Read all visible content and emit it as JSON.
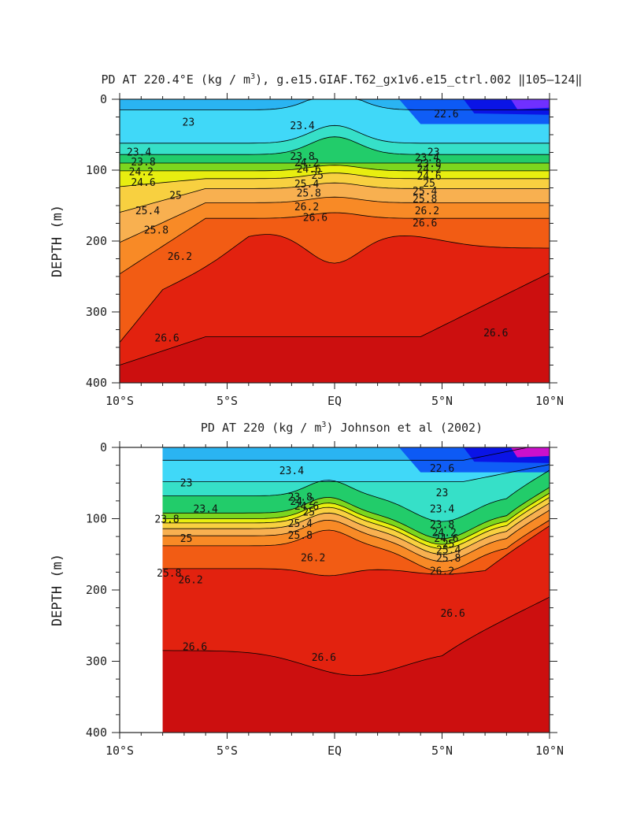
{
  "chart_data": [
    {
      "type": "contour",
      "title_prefix": "PD AT 220.4°E (kg / m",
      "title_sup": "3",
      "title_suffix": "), g.e15.GIAF.T62_gx1v6.e15_ctrl.002 ‖105–124‖",
      "ylabel": "DEPTH (m)",
      "xlabel": "",
      "xlim": [
        -10,
        10
      ],
      "ylim": [
        400,
        0
      ],
      "x_ticks": [
        -10,
        -5,
        0,
        5,
        10
      ],
      "x_tick_labels": [
        "10°S",
        "5°S",
        "EQ",
        "5°N",
        "10°N"
      ],
      "y_ticks": [
        0,
        100,
        200,
        300,
        400
      ],
      "y_tick_labels": [
        "0",
        "100",
        "200",
        "300",
        "400"
      ],
      "data_x_start": -10,
      "levels": [
        22.6,
        23.0,
        23.4,
        23.8,
        24.2,
        24.6,
        25.0,
        25.4,
        25.8,
        26.2,
        26.6
      ],
      "contour_labels": [
        {
          "text": "23",
          "x": -6.8,
          "y": 33
        },
        {
          "text": "23.4",
          "x": -9.1,
          "y": 75
        },
        {
          "text": "23.8",
          "x": -8.9,
          "y": 89
        },
        {
          "text": "24.2",
          "x": -9.0,
          "y": 103
        },
        {
          "text": "24.6",
          "x": -8.9,
          "y": 118
        },
        {
          "text": "25",
          "x": -7.4,
          "y": 136
        },
        {
          "text": "25.4",
          "x": -8.7,
          "y": 158
        },
        {
          "text": "25.8",
          "x": -8.3,
          "y": 185
        },
        {
          "text": "26.2",
          "x": -7.2,
          "y": 222
        },
        {
          "text": "26.6",
          "x": -7.8,
          "y": 337
        },
        {
          "text": "23.4",
          "x": -1.5,
          "y": 38
        },
        {
          "text": "23.8",
          "x": -1.5,
          "y": 81
        },
        {
          "text": "24.2",
          "x": -1.3,
          "y": 90
        },
        {
          "text": "24.6",
          "x": -1.2,
          "y": 99
        },
        {
          "text": "25",
          "x": -0.8,
          "y": 108
        },
        {
          "text": "25.4",
          "x": -1.3,
          "y": 120
        },
        {
          "text": "25.8",
          "x": -1.2,
          "y": 133
        },
        {
          "text": "26.2",
          "x": -1.3,
          "y": 152
        },
        {
          "text": "26.6",
          "x": -0.9,
          "y": 167
        },
        {
          "text": "22.6",
          "x": 5.2,
          "y": 21
        },
        {
          "text": "23",
          "x": 4.6,
          "y": 75
        },
        {
          "text": "23.4",
          "x": 4.3,
          "y": 83
        },
        {
          "text": "23.8",
          "x": 4.4,
          "y": 91
        },
        {
          "text": "24.2",
          "x": 4.4,
          "y": 99
        },
        {
          "text": "24.6",
          "x": 4.4,
          "y": 109
        },
        {
          "text": "25",
          "x": 4.4,
          "y": 119
        },
        {
          "text": "25.4",
          "x": 4.2,
          "y": 130
        },
        {
          "text": "25.8",
          "x": 4.2,
          "y": 141
        },
        {
          "text": "26.2",
          "x": 4.3,
          "y": 158
        },
        {
          "text": "26.6",
          "x": 4.2,
          "y": 175
        },
        {
          "text": "26.6",
          "x": 7.5,
          "y": 330
        }
      ]
    },
    {
      "type": "contour",
      "title_prefix": "PD AT 220 (kg / m",
      "title_sup": "3",
      "title_suffix": ") Johnson et al (2002)",
      "ylabel": "DEPTH (m)",
      "xlabel": "",
      "xlim": [
        -10,
        10
      ],
      "ylim": [
        400,
        0
      ],
      "x_ticks": [
        -10,
        -5,
        0,
        5,
        10
      ],
      "x_tick_labels": [
        "10°S",
        "5°S",
        "EQ",
        "5°N",
        "10°N"
      ],
      "y_ticks": [
        0,
        100,
        200,
        300,
        400
      ],
      "y_tick_labels": [
        "0",
        "100",
        "200",
        "300",
        "400"
      ],
      "data_x_start": -8,
      "levels": [
        22.6,
        23.0,
        23.4,
        23.8,
        24.2,
        24.6,
        25.0,
        25.4,
        25.8,
        26.2,
        26.6
      ],
      "contour_labels": [
        {
          "text": "23",
          "x": -6.9,
          "y": 50
        },
        {
          "text": "23.4",
          "x": -6.0,
          "y": 87
        },
        {
          "text": "23.8",
          "x": -7.8,
          "y": 101
        },
        {
          "text": "25",
          "x": -6.9,
          "y": 128
        },
        {
          "text": "25.8",
          "x": -7.7,
          "y": 177
        },
        {
          "text": "26.2",
          "x": -6.7,
          "y": 186
        },
        {
          "text": "26.6",
          "x": -6.5,
          "y": 280
        },
        {
          "text": "23.4",
          "x": -2.0,
          "y": 33
        },
        {
          "text": "23.8",
          "x": -1.6,
          "y": 70
        },
        {
          "text": "24.2",
          "x": -1.5,
          "y": 76
        },
        {
          "text": "24.6",
          "x": -1.3,
          "y": 83
        },
        {
          "text": "25",
          "x": -1.2,
          "y": 91
        },
        {
          "text": "25.4",
          "x": -1.6,
          "y": 107
        },
        {
          "text": "25.8",
          "x": -1.6,
          "y": 124
        },
        {
          "text": "26.2",
          "x": -1.0,
          "y": 155
        },
        {
          "text": "26.6",
          "x": -0.5,
          "y": 295
        },
        {
          "text": "22.6",
          "x": 5.0,
          "y": 30
        },
        {
          "text": "23",
          "x": 5.0,
          "y": 64
        },
        {
          "text": "23.4",
          "x": 5.0,
          "y": 87
        },
        {
          "text": "23.8",
          "x": 5.0,
          "y": 109
        },
        {
          "text": "24.2",
          "x": 5.1,
          "y": 120
        },
        {
          "text": "24.6",
          "x": 5.2,
          "y": 128
        },
        {
          "text": "25",
          "x": 5.3,
          "y": 136
        },
        {
          "text": "25.4",
          "x": 5.3,
          "y": 144
        },
        {
          "text": "25.8",
          "x": 5.3,
          "y": 156
        },
        {
          "text": "26.2",
          "x": 5.0,
          "y": 174
        },
        {
          "text": "26.6",
          "x": 5.5,
          "y": 233
        }
      ]
    }
  ],
  "colors": {
    "bands": [
      "#7030ff",
      "#0a14e6",
      "#0a50f5",
      "#1e88f0",
      "#2ab4f2",
      "#40d8f8",
      "#36e0c8",
      "#22cc6a",
      "#7cd61e",
      "#e8ee10",
      "#f8d040",
      "#f8b050",
      "#f88a26",
      "#f25c14",
      "#e2220f",
      "#cc0f0f"
    ],
    "magenta": "#cc10cc",
    "contour": "#000000",
    "axis": "#222222"
  }
}
